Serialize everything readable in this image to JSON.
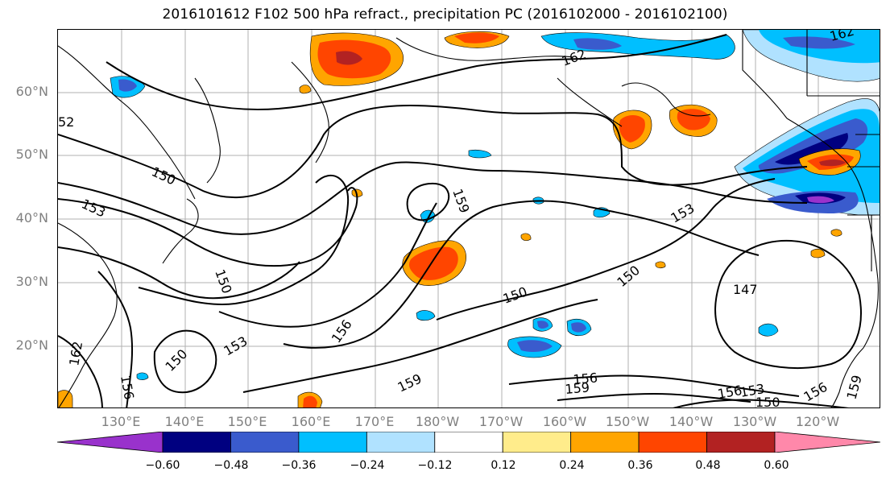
{
  "title": "2016101612 F102 500 hPa refract., precipitation PC (2016102000 - 2016102100)",
  "lat_labels": [
    "60°N",
    "50°N",
    "40°N",
    "30°N",
    "20°N"
  ],
  "lon_labels": [
    "130°E",
    "140°E",
    "150°E",
    "160°E",
    "170°E",
    "180°W",
    "170°W",
    "160°W",
    "150°W",
    "140°W",
    "130°W",
    "120°W"
  ],
  "contour_labels": [
    "162",
    "162",
    "52",
    "150",
    "153",
    "150",
    "159",
    "153",
    "150",
    "156",
    "153",
    "150",
    "156",
    "159",
    "150",
    "156",
    "159",
    "147",
    "156",
    "153",
    "150",
    "156",
    "159",
    "162"
  ],
  "colorbar": {
    "labels": [
      "−0.60",
      "−0.48",
      "−0.36",
      "−0.24",
      "−0.12",
      "0.12",
      "0.24",
      "0.36",
      "0.48",
      "0.60"
    ],
    "colors": [
      "#9932cc",
      "#000080",
      "#3a5bcd",
      "#00bfff",
      "#b0e2ff",
      "#ffffff",
      "#ffec8b",
      "#ffa500",
      "#ff4500",
      "#b22222",
      "#ff88aa"
    ]
  }
}
